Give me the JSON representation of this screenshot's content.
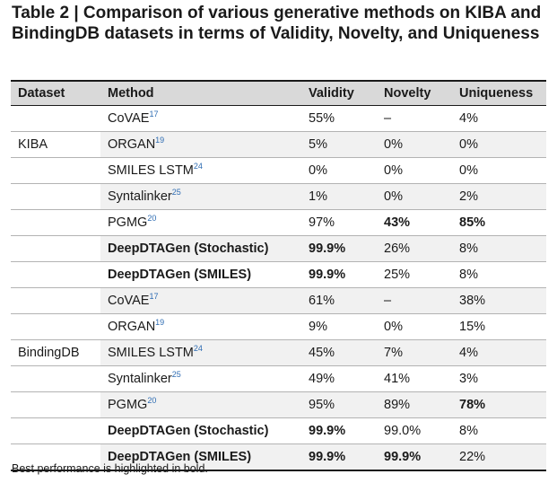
{
  "title": "Table 2 | Comparison of various generative methods on KIBA and BindingDB datasets in terms of Validity, Novelty, and Uniqueness",
  "headers": [
    "Dataset",
    "Method",
    "Validity",
    "Novelty",
    "Uniqueness"
  ],
  "rows": [
    {
      "dataset": "",
      "method": "CoVAE",
      "ref": "17",
      "validity": "55%",
      "novelty": "–",
      "uniqueness": "4%",
      "bold": []
    },
    {
      "dataset": "KIBA",
      "method": "ORGAN",
      "ref": "19",
      "validity": "5%",
      "novelty": "0%",
      "uniqueness": "0%",
      "bold": []
    },
    {
      "dataset": "",
      "method": "SMILES LSTM",
      "ref": "24",
      "validity": "0%",
      "novelty": "0%",
      "uniqueness": "0%",
      "bold": []
    },
    {
      "dataset": "",
      "method": "Syntalinker",
      "ref": "25",
      "validity": "1%",
      "novelty": "0%",
      "uniqueness": "2%",
      "bold": []
    },
    {
      "dataset": "",
      "method": "PGMG",
      "ref": "20",
      "validity": "97%",
      "novelty": "43%",
      "uniqueness": "85%",
      "bold": [
        "novelty",
        "uniqueness"
      ]
    },
    {
      "dataset": "",
      "method": "DeepDTAGen (Stochastic)",
      "ref": "",
      "validity": "99.9%",
      "novelty": "26%",
      "uniqueness": "8%",
      "bold": [
        "method",
        "validity"
      ]
    },
    {
      "dataset": "",
      "method": "DeepDTAGen (SMILES)",
      "ref": "",
      "validity": "99.9%",
      "novelty": "25%",
      "uniqueness": "8%",
      "bold": [
        "method",
        "validity"
      ]
    },
    {
      "dataset": "",
      "method": "CoVAE",
      "ref": "17",
      "validity": "61%",
      "novelty": "–",
      "uniqueness": "38%",
      "bold": []
    },
    {
      "dataset": "",
      "method": "ORGAN",
      "ref": "19",
      "validity": "9%",
      "novelty": "0%",
      "uniqueness": "15%",
      "bold": []
    },
    {
      "dataset": "BindingDB",
      "method": "SMILES LSTM",
      "ref": "24",
      "validity": "45%",
      "novelty": "7%",
      "uniqueness": "4%",
      "bold": []
    },
    {
      "dataset": "",
      "method": "Syntalinker",
      "ref": "25",
      "validity": "49%",
      "novelty": "41%",
      "uniqueness": "3%",
      "bold": []
    },
    {
      "dataset": "",
      "method": "PGMG",
      "ref": "20",
      "validity": "95%",
      "novelty": "89%",
      "uniqueness": "78%",
      "bold": [
        "uniqueness"
      ]
    },
    {
      "dataset": "",
      "method": "DeepDTAGen (Stochastic)",
      "ref": "",
      "validity": "99.9%",
      "novelty": "99.0%",
      "uniqueness": "8%",
      "bold": [
        "method",
        "validity"
      ]
    },
    {
      "dataset": "",
      "method": "DeepDTAGen (SMILES)",
      "ref": "",
      "validity": "99.9%",
      "novelty": "99.9%",
      "uniqueness": "22%",
      "bold": [
        "method",
        "validity",
        "novelty"
      ]
    }
  ],
  "footnote": "Best performance is highlighted in bold."
}
